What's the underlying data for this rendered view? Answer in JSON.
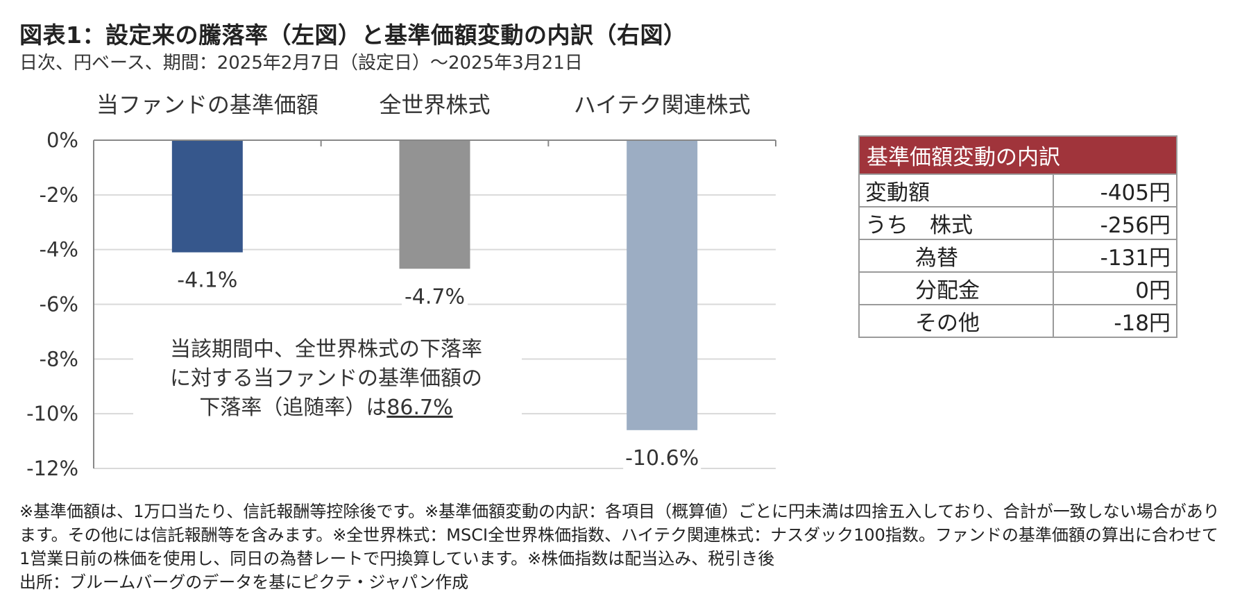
{
  "title": "図表1：設定来の騰落率（左図）と基準価額変動の内訳（右図）",
  "subtitle": "日次、円ベース、期間：2025年2月7日（設定日）～2025年3月21日",
  "colors": {
    "fund": "#36578c",
    "world": "#939393",
    "hightech": "#9cadc3",
    "grid": "#d9d9d9",
    "table_header": "#a0343b"
  },
  "chart_data": {
    "type": "bar",
    "categories": [
      "当ファンドの基準価額",
      "全世界株式",
      "ハイテク関連株式"
    ],
    "values": [
      -4.1,
      -4.7,
      -10.6
    ],
    "value_labels": [
      "-4.1%",
      "-4.7%",
      "-10.6%"
    ],
    "ylim": [
      -12,
      0
    ],
    "yticks": [
      0,
      -2,
      -4,
      -6,
      -8,
      -10,
      -12
    ],
    "ytick_labels": [
      "0%",
      "-2%",
      "-4%",
      "-6%",
      "-8%",
      "-10%",
      "-12%"
    ],
    "grid": true,
    "annotation": {
      "lines": [
        "当該期間中、全世界株式の下落率",
        "に対する当ファンドの基準価額の"
      ],
      "line3_prefix": "下落率（追随率）は",
      "line3_value": "86.7%"
    }
  },
  "breakdown": {
    "header": "基準価額変動の内訳",
    "rows": [
      {
        "item": "変動額",
        "value": "-405円"
      },
      {
        "item": "うち　株式",
        "value": "-256円"
      },
      {
        "item": "為替",
        "value": "-131円"
      },
      {
        "item": "分配金",
        "value": "0円"
      },
      {
        "item": "その他",
        "value": "-18円"
      }
    ]
  },
  "notes": [
    "※基準価額は、1万口当たり、信託報酬等控除後です。※基準価額変動の内訳：各項目（概算値）ごとに円未満は四捨五入しており、合計が一致しない場合があります。その他には信託報酬等を含みます。※全世界株式：MSCI全世界株価指数、ハイテク関連株式：ナスダック100指数。ファンドの基準価額の算出に合わせて1営業日前の株価を使用し、同日の為替レートで円換算しています。※株価指数は配当込み、税引き後",
    "出所：ブルームバーグのデータを基にピクテ・ジャパン作成"
  ]
}
